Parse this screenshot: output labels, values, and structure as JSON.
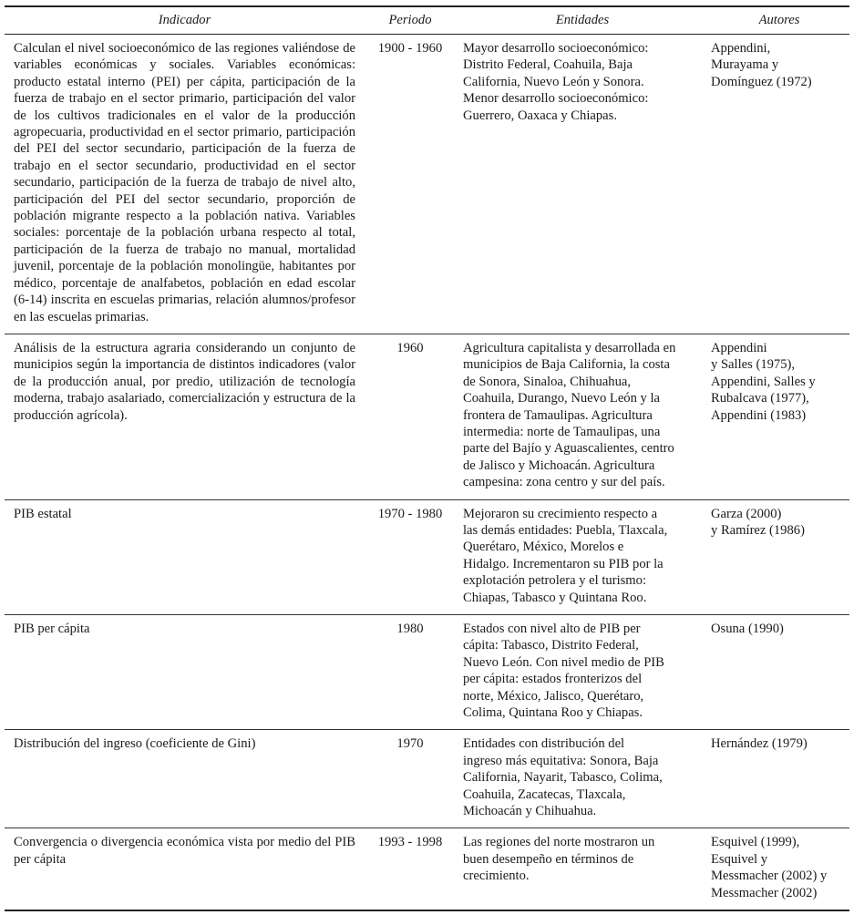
{
  "headers": {
    "indicador": "Indicador",
    "periodo": "Periodo",
    "entidades": "Entidades",
    "autores": "Autores"
  },
  "rows": [
    {
      "indicador": "Calculan el nivel socioeconómico de las regiones valiéndose de variables económicas y sociales. Variables económicas: producto estatal interno (PEI) per cápita, participación de la fuerza de trabajo en el sector primario, participación del valor de los cultivos tradicionales en el valor de la producción agropecuaria, productividad en el sector primario, participación del PEI del sector secundario, participación de la fuerza de trabajo en el sector secundario, productividad en el sector secundario, participación de la fuerza de trabajo de nivel alto, participación del PEI del sector secundario, proporción de población migrante respecto a la población nativa. Variables sociales: porcentaje de la población urbana respecto al total, participación de la fuerza de trabajo no manual, mortalidad juvenil, porcentaje de la población monolingüe, habitantes por médico, porcentaje de analfabetos, población en edad escolar (6-14) inscrita en escuelas primarias, relación alumnos/profesor en las escuelas primarias.",
      "periodo": "1900 - 1960",
      "entidades": "Mayor desarrollo socioeconómico:\nDistrito Federal, Coahuila, Baja\nCalifornia, Nuevo León y Sonora.\nMenor desarrollo socioeconómico:\nGuerrero, Oaxaca y Chiapas.",
      "autores": "Appendini,\nMurayama y\nDomínguez (1972)"
    },
    {
      "indicador": "Análisis de la estructura agraria considerando un conjunto de municipios según la importancia de distintos indicadores (valor de la producción anual, por predio, utilización de tecnología moderna, trabajo asalariado, comercialización y estructura de la producción agrícola).",
      "periodo": "1960",
      "entidades": "Agricultura capitalista y desarrollada en\nmunicipios de Baja California, la costa\nde Sonora, Sinaloa, Chihuahua,\nCoahuila, Durango, Nuevo León y la\nfrontera de Tamaulipas. Agricultura\nintermedia: norte de Tamaulipas, una\nparte del Bajío y Aguascalientes, centro\nde Jalisco y Michoacán. Agricultura\ncampesina: zona centro y sur del país.",
      "autores": "Appendini\ny Salles (1975),\nAppendini, Salles y\nRubalcava (1977),\nAppendini (1983)"
    },
    {
      "indicador": "PIB estatal",
      "periodo": "1970 - 1980",
      "entidades": "Mejoraron su crecimiento respecto a\nlas demás entidades: Puebla, Tlaxcala,\nQuerétaro, México, Morelos e\nHidalgo. Incrementaron su PIB por la\nexplotación petrolera y el turismo:\nChiapas, Tabasco y Quintana Roo.",
      "autores": "Garza (2000)\ny Ramírez (1986)"
    },
    {
      "indicador": "PIB per cápita",
      "periodo": "1980",
      "entidades": "Estados con nivel alto de PIB per\ncápita: Tabasco, Distrito Federal,\nNuevo León. Con nivel medio de PIB\nper cápita: estados fronterizos del\nnorte, México, Jalisco, Querétaro,\nColima, Quintana Roo y Chiapas.",
      "autores": "Osuna (1990)"
    },
    {
      "indicador": "Distribución del ingreso (coeficiente de Gini)",
      "periodo": "1970",
      "entidades": "Entidades con distribución del\ningreso más equitativa: Sonora, Baja\nCalifornia, Nayarit, Tabasco, Colima,\nCoahuila, Zacatecas, Tlaxcala,\nMichoacán y Chihuahua.",
      "autores": "Hernández (1979)"
    },
    {
      "indicador": "Convergencia o divergencia económica vista por medio del PIB per cápita",
      "periodo": "1993 - 1998",
      "entidades": "Las regiones del norte mostraron un\nbuen desempeño en términos de\ncrecimiento.",
      "autores": "Esquivel (1999),\nEsquivel y\nMessmacher (2002) y\nMessmacher (2002)"
    }
  ]
}
